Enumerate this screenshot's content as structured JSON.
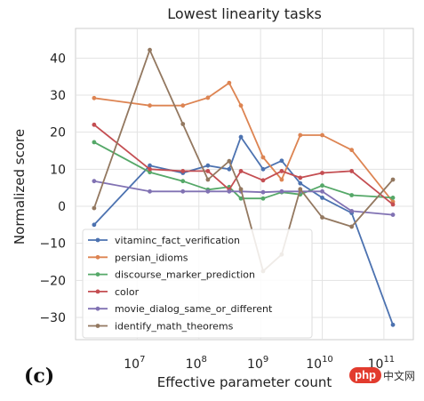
{
  "chart_data": {
    "type": "line",
    "title": "Lowest linearity tasks",
    "xlabel": "Effective parameter count",
    "ylabel": "Normalized score",
    "x_scale": "log",
    "xlim": [
      1000000,
      300000000000
    ],
    "ylim": [
      -36,
      48
    ],
    "x_ticks": [
      {
        "value": 10000000,
        "base": "10",
        "exp": "7"
      },
      {
        "value": 100000000,
        "base": "10",
        "exp": "8"
      },
      {
        "value": 1000000000,
        "base": "10",
        "exp": "9"
      },
      {
        "value": 10000000000,
        "base": "10",
        "exp": "10"
      },
      {
        "value": 100000000000,
        "base": "10",
        "exp": "11"
      }
    ],
    "y_ticks": [
      -30,
      -20,
      -10,
      0,
      10,
      20,
      30,
      40
    ],
    "grid": true,
    "legend_position": "lower-left",
    "series": [
      {
        "name": "vitaminc_fact_verification",
        "color": "#4c72b0",
        "x": [
          2000000,
          16000000,
          55000000,
          140000000,
          310000000,
          480000000,
          1100000000,
          2200000000,
          4400000000,
          10000000000,
          30000000000,
          140000000000
        ],
        "y": [
          -5,
          11,
          9,
          11,
          10,
          18.7,
          10,
          12.3,
          6.2,
          2.3,
          -1.8,
          -32
        ]
      },
      {
        "name": "persian_idioms",
        "color": "#dd8452",
        "x": [
          2000000,
          16000000,
          55000000,
          140000000,
          310000000,
          480000000,
          1100000000,
          2200000000,
          4400000000,
          10000000000,
          30000000000,
          140000000000
        ],
        "y": [
          29.2,
          27.2,
          27.2,
          29.3,
          33.3,
          27.2,
          13.2,
          7.2,
          19.2,
          19.2,
          15.2,
          1.2
        ]
      },
      {
        "name": "discourse_marker_prediction",
        "color": "#55a868",
        "x": [
          2000000,
          16000000,
          55000000,
          140000000,
          310000000,
          480000000,
          1100000000,
          2200000000,
          4400000000,
          10000000000,
          30000000000,
          140000000000
        ],
        "y": [
          17.3,
          9.2,
          6.8,
          4.5,
          5.2,
          2.1,
          2.1,
          3.8,
          3.2,
          5.6,
          3,
          2.3
        ]
      },
      {
        "name": "color",
        "color": "#c44e52",
        "x": [
          2000000,
          16000000,
          55000000,
          140000000,
          310000000,
          480000000,
          1100000000,
          2200000000,
          4400000000,
          10000000000,
          30000000000,
          140000000000
        ],
        "y": [
          22,
          10,
          9.5,
          9.5,
          4.5,
          9.5,
          7,
          9.5,
          7.7,
          9,
          9.5,
          0.5
        ]
      },
      {
        "name": "movie_dialog_same_or_different",
        "color": "#8172b3",
        "x": [
          2000000,
          16000000,
          55000000,
          140000000,
          310000000,
          480000000,
          1100000000,
          2200000000,
          4400000000,
          10000000000,
          30000000000,
          140000000000
        ],
        "y": [
          6.8,
          4,
          4,
          4,
          4,
          4,
          3.8,
          4,
          4,
          4,
          -1.3,
          -2.3
        ]
      },
      {
        "name": "identify_math_theorems",
        "color": "#937860",
        "x": [
          2000000,
          16000000,
          55000000,
          140000000,
          310000000,
          480000000,
          1100000000,
          2200000000,
          4400000000,
          10000000000,
          30000000000,
          140000000000
        ],
        "y": [
          -0.5,
          42.2,
          22.2,
          7.2,
          12.2,
          4.6,
          -17.5,
          -13,
          4.6,
          -3,
          -5.5,
          7.2
        ]
      }
    ]
  },
  "panel_label": "(c)",
  "watermark": {
    "badge": "php",
    "text": "中文网"
  }
}
